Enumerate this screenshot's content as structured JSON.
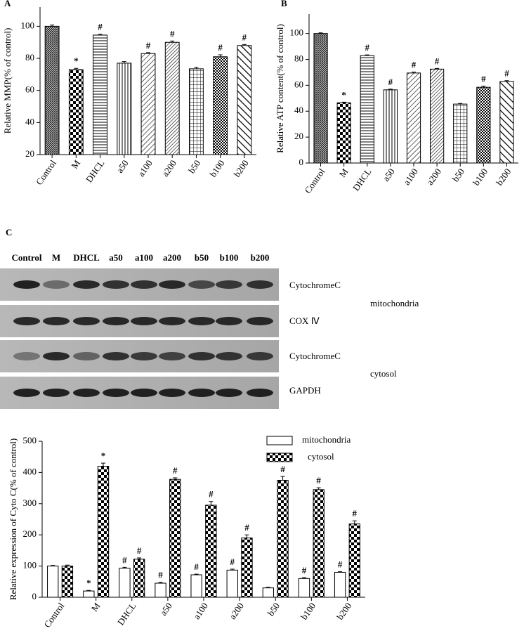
{
  "chart_data": [
    {
      "type": "bar",
      "panel_label": "A",
      "y_label": "Relative MMP(% of control)",
      "categories": [
        "Control",
        "M",
        "DHCL",
        "a50",
        "a100",
        "a200",
        "b50",
        "b100",
        "b200"
      ],
      "values": [
        100,
        73,
        94.5,
        77,
        83,
        90,
        73.5,
        81,
        88
      ],
      "errors": [
        0.8,
        0.8,
        0.6,
        1,
        0.6,
        0.8,
        0.8,
        1.2,
        0.6
      ],
      "annotations": [
        null,
        "*",
        "#",
        null,
        "#",
        "#",
        null,
        "#",
        "#"
      ],
      "ylim": [
        20,
        112
      ],
      "yticks": [
        20,
        40,
        60,
        80,
        100
      ]
    },
    {
      "type": "bar",
      "panel_label": "B",
      "y_label": "Relative ATP content(% of control)",
      "categories": [
        "Control",
        "M",
        "DHCL",
        "a50",
        "a100",
        "a200",
        "b50",
        "b100",
        "b200"
      ],
      "values": [
        100,
        46.5,
        83,
        56.5,
        69.5,
        72.5,
        45.5,
        58.5,
        63
      ],
      "errors": [
        0.5,
        0.5,
        0.5,
        0.5,
        0.7,
        0.5,
        0.5,
        0.8,
        0.6
      ],
      "annotations": [
        null,
        "*",
        "#",
        "#",
        "#",
        "#",
        null,
        "#",
        "#"
      ],
      "ylim": [
        0,
        115
      ],
      "yticks": [
        0,
        20,
        40,
        60,
        80,
        100
      ]
    },
    {
      "type": "grouped-bar",
      "y_label": "Relative expression of Cyto C(% of control)",
      "categories": [
        "Control",
        "M",
        "DHCL",
        "a50",
        "a100",
        "a200",
        "b50",
        "b100",
        "b200"
      ],
      "series": [
        {
          "name": "mitochondria",
          "values": [
            100,
            20,
            93,
            45,
            72,
            87,
            30,
            60,
            80
          ],
          "errors": [
            2,
            2,
            3,
            3,
            2,
            3,
            2,
            3,
            2
          ],
          "annotations": [
            null,
            "*",
            "#",
            "#",
            "#",
            "#",
            null,
            "#",
            "#"
          ]
        },
        {
          "name": "cytosol",
          "values": [
            100,
            420,
            122,
            378,
            295,
            190,
            375,
            345,
            235
          ],
          "errors": [
            3,
            10,
            4,
            5,
            12,
            10,
            12,
            6,
            10
          ],
          "annotations": [
            null,
            "*",
            "#",
            "#",
            "#",
            "#",
            "#",
            "#",
            "#"
          ]
        }
      ],
      "ylim": [
        0,
        500
      ],
      "yticks": [
        0,
        100,
        200,
        300,
        400,
        500
      ]
    }
  ],
  "blot": {
    "panel_label": "C",
    "lanes": [
      "Control",
      "M",
      "DHCL",
      "a50",
      "a100",
      "a200",
      "b50",
      "b100",
      "b200"
    ],
    "rows": [
      "CytochromeC",
      "COX Ⅳ",
      "CytochromeC",
      "GAPDH"
    ],
    "groups": [
      "mitochondria",
      "cytosol"
    ]
  }
}
